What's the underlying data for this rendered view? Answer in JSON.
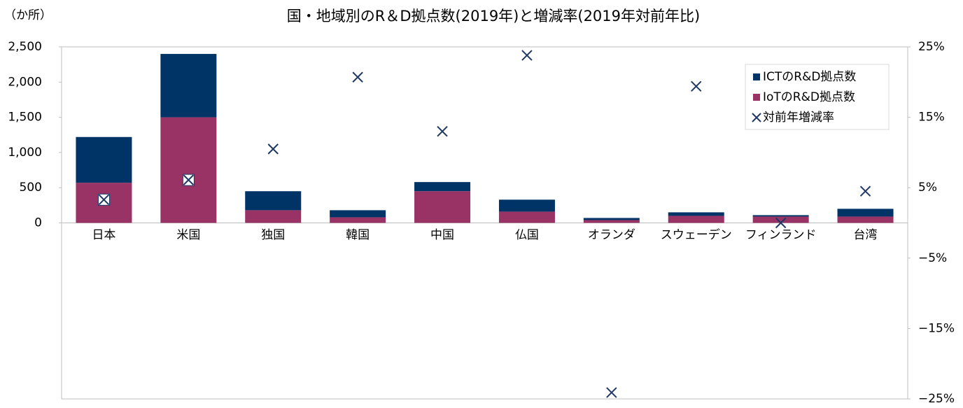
{
  "chart_data": {
    "type": "bar",
    "title": "国・地域別のR＆D拠点数(2019年)と増減率(2019年対前年比)",
    "y_label": "（か所）",
    "categories": [
      "日本",
      "米国",
      "独国",
      "韓国",
      "中国",
      "仏国",
      "オランダ",
      "スウェーデン",
      "フィンランド",
      "台湾"
    ],
    "series": [
      {
        "name": "ICTのR&D拠点数",
        "color": "#003366",
        "type": "bar",
        "values": [
          650,
          900,
          270,
          100,
          130,
          170,
          30,
          50,
          20,
          110
        ]
      },
      {
        "name": "IoTのR&D拠点数",
        "color": "#993366",
        "type": "bar",
        "values": [
          570,
          1500,
          180,
          80,
          450,
          160,
          40,
          100,
          90,
          90
        ]
      },
      {
        "name": "対前年増減率",
        "color": "#1f3864",
        "type": "scatter",
        "axis": "y2",
        "values": [
          3.3,
          6.1,
          10.5,
          20.7,
          13,
          23.8,
          -24.1,
          19.4,
          0,
          4.5
        ]
      }
    ],
    "ylim": [
      -2500,
      2500
    ],
    "yticks": [
      0,
      500,
      {
        "value": 1000,
        "label": "1,000"
      },
      {
        "value": 1500,
        "label": "1,500"
      },
      {
        "value": 2000,
        "label": "2,000"
      },
      {
        "value": 2500,
        "label": "2,500"
      }
    ],
    "y2lim": [
      -25,
      25
    ],
    "y2ticks": [
      {
        "value": 25,
        "label": "25%"
      },
      {
        "value": 15,
        "label": "15%"
      },
      {
        "value": 5,
        "label": "5%"
      },
      {
        "value": -5,
        "label": "−5%"
      },
      {
        "value": -15,
        "label": "−15%"
      },
      {
        "value": -25,
        "label": "−25%"
      }
    ],
    "legend": "upper right"
  }
}
